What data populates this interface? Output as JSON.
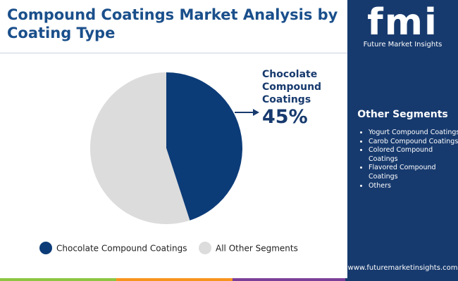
{
  "chart_data": {
    "type": "pie",
    "title": "Compound Coatings Market Analysis by Coating Type",
    "categories": [
      "Chocolate Compound Coatings",
      "All Other Segments"
    ],
    "values": [
      45,
      55
    ],
    "value_labels": [
      "45%",
      null
    ],
    "colors": [
      "#0c3c78",
      "#dcdcdc"
    ]
  },
  "sidebar": {
    "title": "Other Segments",
    "items": [
      "Yogurt Compound Coatings",
      "Carob Compound Coatings",
      "Colored Compound Coatings",
      "Flavored Compound Coatings",
      "Others"
    ]
  },
  "logo": {
    "mark": "fmi",
    "name": "Future Market Insights"
  },
  "footer": {
    "url": "www.futuremarketinsights.com"
  }
}
